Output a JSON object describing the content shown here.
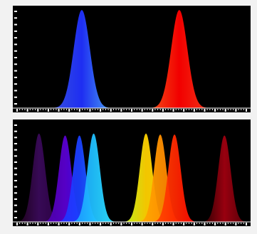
{
  "colors": {
    "background": "#000000",
    "frame": "#f2f2f2",
    "axis": "#ffffff"
  },
  "chart_data": [
    {
      "type": "area",
      "title": "",
      "xlabel": "",
      "ylabel": "",
      "xlim": [
        0,
        100
      ],
      "ylim": [
        0,
        100
      ],
      "grid": false,
      "legend": "none",
      "x_ticks": 23,
      "y_ticks": 15,
      "peaks": [
        {
          "name": "",
          "center": 29,
          "height": 100,
          "width": 3.4,
          "color_base": "#3a56e8",
          "color_peak": "#2030ff",
          "color_tail": "#4fb0ff"
        },
        {
          "name": "",
          "center": 70,
          "height": 100,
          "width": 3.4,
          "color_base": "#ff5a1a",
          "color_peak": "#ff0000",
          "color_tail": "#ff3a1a"
        }
      ]
    },
    {
      "type": "area",
      "title": "",
      "xlabel": "",
      "ylabel": "",
      "xlim": [
        0,
        100
      ],
      "ylim": [
        0,
        100
      ],
      "grid": false,
      "legend": "none",
      "x_ticks": 23,
      "y_ticks": 16,
      "peaks": [
        {
          "name": "",
          "center": 11,
          "height": 90,
          "width": 2.6,
          "color_base": "#1a0010",
          "color_peak": "#3a0a5a",
          "color_tail": "#2a0040"
        },
        {
          "name": "",
          "center": 22,
          "height": 88,
          "width": 2.6,
          "color_base": "#4a00a0",
          "color_peak": "#5a00d0",
          "color_tail": "#2a10ff"
        },
        {
          "name": "",
          "center": 28,
          "height": 88,
          "width": 2.6,
          "color_base": "#2a2aff",
          "color_peak": "#1a40ff",
          "color_tail": "#1a80ff"
        },
        {
          "name": "",
          "center": 34,
          "height": 90,
          "width": 2.6,
          "color_base": "#1a90ff",
          "color_peak": "#20c0ff",
          "color_tail": "#30e8ff"
        },
        {
          "name": "",
          "center": 56,
          "height": 90,
          "width": 2.6,
          "color_base": "#c0ff20",
          "color_peak": "#ffd000",
          "color_tail": "#ffe000"
        },
        {
          "name": "",
          "center": 62,
          "height": 89,
          "width": 2.6,
          "color_base": "#ffb000",
          "color_peak": "#ff9000",
          "color_tail": "#ff7000"
        },
        {
          "name": "",
          "center": 68,
          "height": 89,
          "width": 2.6,
          "color_base": "#ff5000",
          "color_peak": "#ff2a00",
          "color_tail": "#ff0000"
        },
        {
          "name": "",
          "center": 89,
          "height": 88,
          "width": 2.6,
          "color_base": "#200000",
          "color_peak": "#a00010",
          "color_tail": "#500008"
        }
      ]
    }
  ]
}
